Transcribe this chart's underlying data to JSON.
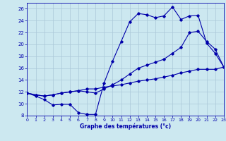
{
  "xlabel": "Graphe des températures (°c)",
  "background_color": "#cce8f0",
  "grid_color": "#aac8d8",
  "line_color": "#0000aa",
  "xlim": [
    0,
    23
  ],
  "ylim": [
    8,
    27
  ],
  "yticks": [
    8,
    10,
    12,
    14,
    16,
    18,
    20,
    22,
    24,
    26
  ],
  "xticks": [
    0,
    1,
    2,
    3,
    4,
    5,
    6,
    7,
    8,
    9,
    10,
    11,
    12,
    13,
    14,
    15,
    16,
    17,
    18,
    19,
    20,
    21,
    22,
    23
  ],
  "line_max": [
    [
      0,
      11.8
    ],
    [
      1,
      11.3
    ],
    [
      2,
      10.7
    ],
    [
      3,
      9.8
    ],
    [
      4,
      9.9
    ],
    [
      5,
      9.9
    ],
    [
      6,
      8.5
    ],
    [
      7,
      8.2
    ],
    [
      8,
      8.2
    ],
    [
      9,
      13.5
    ],
    [
      10,
      17.2
    ],
    [
      11,
      20.5
    ],
    [
      12,
      23.8
    ],
    [
      13,
      25.2
    ],
    [
      14,
      25.0
    ],
    [
      15,
      24.5
    ],
    [
      16,
      24.8
    ],
    [
      17,
      26.3
    ],
    [
      18,
      24.2
    ],
    [
      19,
      24.8
    ],
    [
      20,
      24.9
    ],
    [
      21,
      20.2
    ],
    [
      22,
      18.5
    ],
    [
      23,
      16.2
    ]
  ],
  "line_avg": [
    [
      0,
      11.8
    ],
    [
      1,
      11.5
    ],
    [
      2,
      11.3
    ],
    [
      3,
      11.5
    ],
    [
      4,
      11.8
    ],
    [
      5,
      12.0
    ],
    [
      6,
      12.2
    ],
    [
      7,
      12.0
    ],
    [
      8,
      11.8
    ],
    [
      9,
      12.5
    ],
    [
      10,
      13.2
    ],
    [
      11,
      14.0
    ],
    [
      12,
      15.0
    ],
    [
      13,
      16.0
    ],
    [
      14,
      16.5
    ],
    [
      15,
      17.0
    ],
    [
      16,
      17.5
    ],
    [
      17,
      18.5
    ],
    [
      18,
      19.5
    ],
    [
      19,
      22.0
    ],
    [
      20,
      22.2
    ],
    [
      21,
      20.5
    ],
    [
      22,
      19.2
    ],
    [
      23,
      16.2
    ]
  ],
  "line_min": [
    [
      0,
      11.8
    ],
    [
      1,
      11.5
    ],
    [
      2,
      11.3
    ],
    [
      3,
      11.5
    ],
    [
      4,
      11.8
    ],
    [
      5,
      12.0
    ],
    [
      6,
      12.2
    ],
    [
      7,
      12.5
    ],
    [
      8,
      12.5
    ],
    [
      9,
      12.8
    ],
    [
      10,
      13.0
    ],
    [
      11,
      13.2
    ],
    [
      12,
      13.5
    ],
    [
      13,
      13.8
    ],
    [
      14,
      14.0
    ],
    [
      15,
      14.2
    ],
    [
      16,
      14.5
    ],
    [
      17,
      14.8
    ],
    [
      18,
      15.2
    ],
    [
      19,
      15.5
    ],
    [
      20,
      15.8
    ],
    [
      21,
      15.8
    ],
    [
      22,
      15.8
    ],
    [
      23,
      16.2
    ]
  ]
}
